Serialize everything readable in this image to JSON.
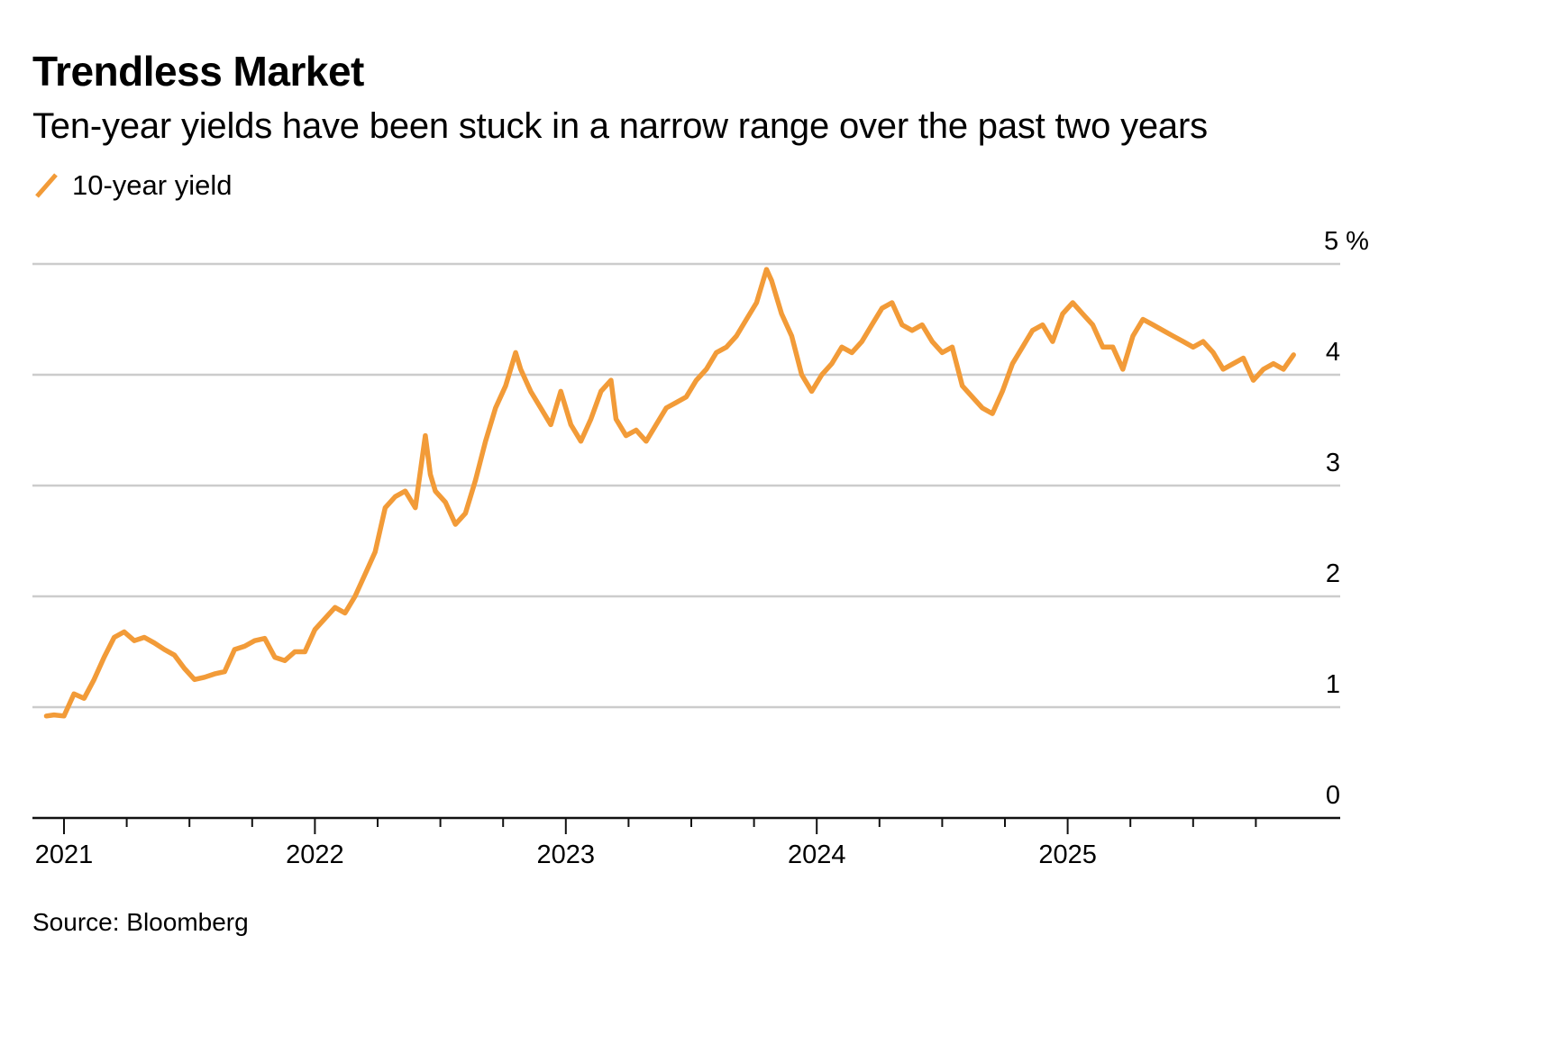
{
  "chart_data": {
    "type": "line",
    "title": "Trendless Market",
    "subtitle": "Ten-year yields have been stuck in a narrow range over the past two years",
    "source": "Source: Bloomberg",
    "xlabel": "",
    "ylabel": "",
    "y_unit_label": "%",
    "ylim": [
      0,
      5
    ],
    "y_ticks": [
      0,
      1,
      2,
      3,
      4,
      5
    ],
    "y_tick_labels": [
      "0",
      "1",
      "2",
      "3",
      "4",
      "5 %"
    ],
    "xlim": [
      2020.9,
      2026.1
    ],
    "x_major_ticks": [
      2021,
      2022,
      2023,
      2024,
      2025
    ],
    "x_tick_labels": [
      "2021",
      "2022",
      "2023",
      "2024",
      "2025"
    ],
    "x_minor_ticks_per_year": 4,
    "grid": "horizontal",
    "legend": {
      "position": "top-left",
      "entries": [
        {
          "name": "10-year yield",
          "color": "#f29b38"
        }
      ]
    },
    "series": [
      {
        "name": "10-year yield",
        "color": "#f29b38",
        "x": [
          2020.93,
          2020.96,
          2021.0,
          2021.04,
          2021.08,
          2021.12,
          2021.16,
          2021.2,
          2021.24,
          2021.28,
          2021.32,
          2021.36,
          2021.4,
          2021.44,
          2021.48,
          2021.52,
          2021.56,
          2021.6,
          2021.64,
          2021.68,
          2021.72,
          2021.76,
          2021.8,
          2021.84,
          2021.88,
          2021.92,
          2021.96,
          2022.0,
          2022.04,
          2022.08,
          2022.12,
          2022.16,
          2022.2,
          2022.24,
          2022.28,
          2022.32,
          2022.36,
          2022.4,
          2022.44,
          2022.46,
          2022.48,
          2022.52,
          2022.56,
          2022.6,
          2022.64,
          2022.68,
          2022.72,
          2022.76,
          2022.8,
          2022.82,
          2022.86,
          2022.9,
          2022.94,
          2022.98,
          2023.02,
          2023.06,
          2023.1,
          2023.14,
          2023.18,
          2023.2,
          2023.24,
          2023.28,
          2023.32,
          2023.36,
          2023.4,
          2023.44,
          2023.48,
          2023.52,
          2023.56,
          2023.6,
          2023.64,
          2023.68,
          2023.72,
          2023.76,
          2023.8,
          2023.82,
          2023.86,
          2023.9,
          2023.94,
          2023.98,
          2024.02,
          2024.06,
          2024.1,
          2024.14,
          2024.18,
          2024.22,
          2024.26,
          2024.3,
          2024.34,
          2024.38,
          2024.42,
          2024.46,
          2024.5,
          2024.54,
          2024.58,
          2024.62,
          2024.66,
          2024.7,
          2024.74,
          2024.78,
          2024.82,
          2024.86,
          2024.9,
          2024.94,
          2024.98,
          2025.02,
          2025.06,
          2025.1,
          2025.14,
          2025.18,
          2025.22,
          2025.26,
          2025.3,
          2025.34,
          2025.38,
          2025.42,
          2025.46,
          2025.5,
          2025.54,
          2025.58,
          2025.62,
          2025.66,
          2025.7,
          2025.74,
          2025.78,
          2025.82,
          2025.86,
          2025.9
        ],
        "values": [
          0.92,
          0.93,
          0.92,
          1.12,
          1.08,
          1.25,
          1.45,
          1.63,
          1.68,
          1.6,
          1.63,
          1.58,
          1.52,
          1.47,
          1.35,
          1.25,
          1.27,
          1.3,
          1.32,
          1.52,
          1.55,
          1.6,
          1.62,
          1.45,
          1.42,
          1.5,
          1.5,
          1.7,
          1.8,
          1.9,
          1.85,
          2.0,
          2.2,
          2.4,
          2.8,
          2.9,
          2.95,
          2.8,
          3.45,
          3.1,
          2.95,
          2.85,
          2.65,
          2.75,
          3.05,
          3.4,
          3.7,
          3.9,
          4.2,
          4.05,
          3.85,
          3.7,
          3.55,
          3.85,
          3.55,
          3.4,
          3.6,
          3.85,
          3.95,
          3.6,
          3.45,
          3.5,
          3.4,
          3.55,
          3.7,
          3.75,
          3.8,
          3.95,
          4.05,
          4.2,
          4.25,
          4.35,
          4.5,
          4.65,
          4.95,
          4.85,
          4.55,
          4.35,
          4.0,
          3.85,
          4.0,
          4.1,
          4.25,
          4.2,
          4.3,
          4.45,
          4.6,
          4.65,
          4.45,
          4.4,
          4.45,
          4.3,
          4.2,
          4.25,
          3.9,
          3.8,
          3.7,
          3.65,
          3.85,
          4.1,
          4.25,
          4.4,
          4.45,
          4.3,
          4.55,
          4.65,
          4.55,
          4.45,
          4.25,
          4.25,
          4.05,
          4.35,
          4.5,
          4.45,
          4.4,
          4.35,
          4.3,
          4.25,
          4.3,
          4.2,
          4.05,
          4.1,
          4.15,
          3.95,
          4.05,
          4.1,
          4.05,
          4.18
        ]
      }
    ]
  }
}
